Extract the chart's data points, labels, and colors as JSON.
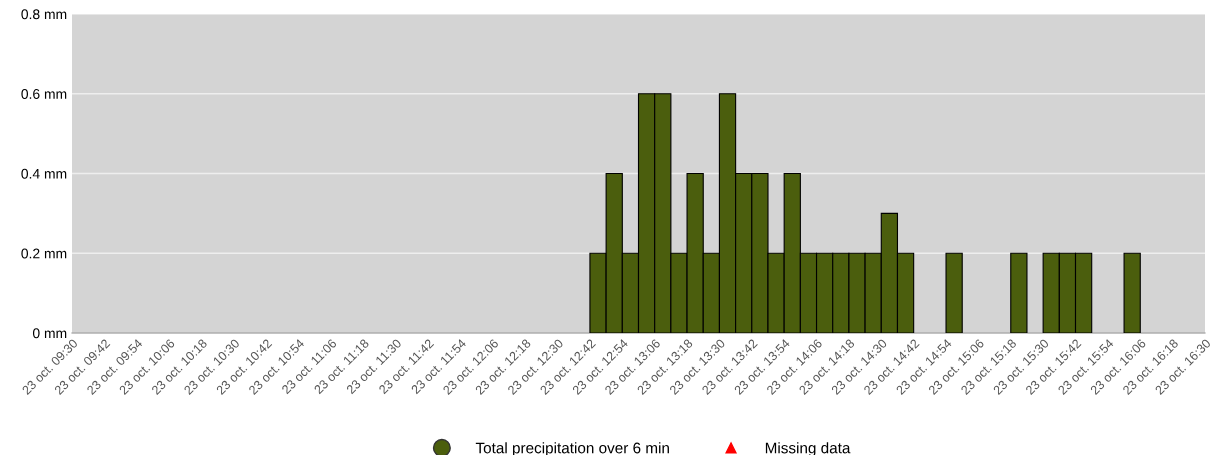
{
  "chart_data": {
    "type": "bar",
    "categories": [
      "23 oct. 09:30",
      null,
      "23 oct. 09:42",
      null,
      "23 oct. 09:54",
      null,
      "23 oct. 10:06",
      null,
      "23 oct. 10:18",
      null,
      "23 oct. 10:30",
      null,
      "23 oct. 10:42",
      null,
      "23 oct. 10:54",
      null,
      "23 oct. 11:06",
      null,
      "23 oct. 11:18",
      null,
      "23 oct. 11:30",
      null,
      "23 oct. 11:42",
      null,
      "23 oct. 11:54",
      null,
      "23 oct. 12:06",
      null,
      "23 oct. 12:18",
      null,
      "23 oct. 12:30",
      null,
      "23 oct. 12:42",
      null,
      "23 oct. 12:54",
      null,
      "23 oct. 13:06",
      null,
      "23 oct. 13:18",
      null,
      "23 oct. 13:30",
      null,
      "23 oct. 13:42",
      null,
      "23 oct. 13:54",
      null,
      "23 oct. 14:06",
      null,
      "23 oct. 14:18",
      null,
      "23 oct. 14:30",
      null,
      "23 oct. 14:42",
      null,
      "23 oct. 14:54",
      null,
      "23 oct. 15:06",
      null,
      "23 oct. 15:18",
      null,
      "23 oct. 15:30",
      null,
      "23 oct. 15:42",
      null,
      "23 oct. 15:54",
      null,
      "23 oct. 16:06",
      null,
      "23 oct. 16:18",
      null,
      "23 oct. 16:30"
    ],
    "series": [
      {
        "name": "Total precipitation over 6 min",
        "color": "#4b5e0d",
        "marker": "circle",
        "values": [
          0,
          0,
          0,
          0,
          0,
          0,
          0,
          0,
          0,
          0,
          0,
          0,
          0,
          0,
          0,
          0,
          0,
          0,
          0,
          0,
          0,
          0,
          0,
          0,
          0,
          0,
          0,
          0,
          0,
          0,
          0,
          0,
          0.2,
          0.4,
          0.2,
          0.6,
          0.6,
          0.2,
          0.4,
          0.2,
          0.6,
          0.4,
          0.4,
          0.2,
          0.4,
          0.2,
          0.2,
          0.2,
          0.2,
          0.2,
          0.3,
          0.2,
          0,
          0,
          0.2,
          0,
          0,
          0,
          0.2,
          0,
          0.2,
          0.2,
          0.2,
          0,
          0,
          0.2,
          0,
          0,
          0,
          0,
          0
        ]
      },
      {
        "name": "Missing data",
        "type": "scatter",
        "color": "#ff0000",
        "marker": "triangle",
        "values": [
          null,
          null,
          null,
          null,
          null,
          null,
          null,
          null,
          null,
          null,
          null,
          null,
          null,
          null,
          null,
          null,
          null,
          null,
          null,
          null,
          null,
          null,
          null,
          null,
          null,
          null,
          null,
          null,
          null,
          null,
          null,
          null,
          null,
          null,
          null,
          null,
          null,
          null,
          null,
          null,
          null,
          null,
          null,
          null,
          null,
          null,
          null,
          null,
          null,
          null,
          null,
          null,
          null,
          null,
          null,
          null,
          null,
          null,
          null,
          null,
          null,
          null,
          null,
          null,
          null,
          null,
          null,
          null,
          null,
          null,
          null
        ]
      }
    ],
    "ylim": [
      0,
      0.8
    ],
    "yticks": [
      {
        "value": 0,
        "label": "0 mm"
      },
      {
        "value": 0.2,
        "label": "0.2 mm"
      },
      {
        "value": 0.4,
        "label": "0.4 mm"
      },
      {
        "value": 0.6,
        "label": "0.6 mm"
      },
      {
        "value": 0.8,
        "label": "0.8 mm"
      }
    ],
    "grid": "y",
    "legend": "bottom"
  }
}
